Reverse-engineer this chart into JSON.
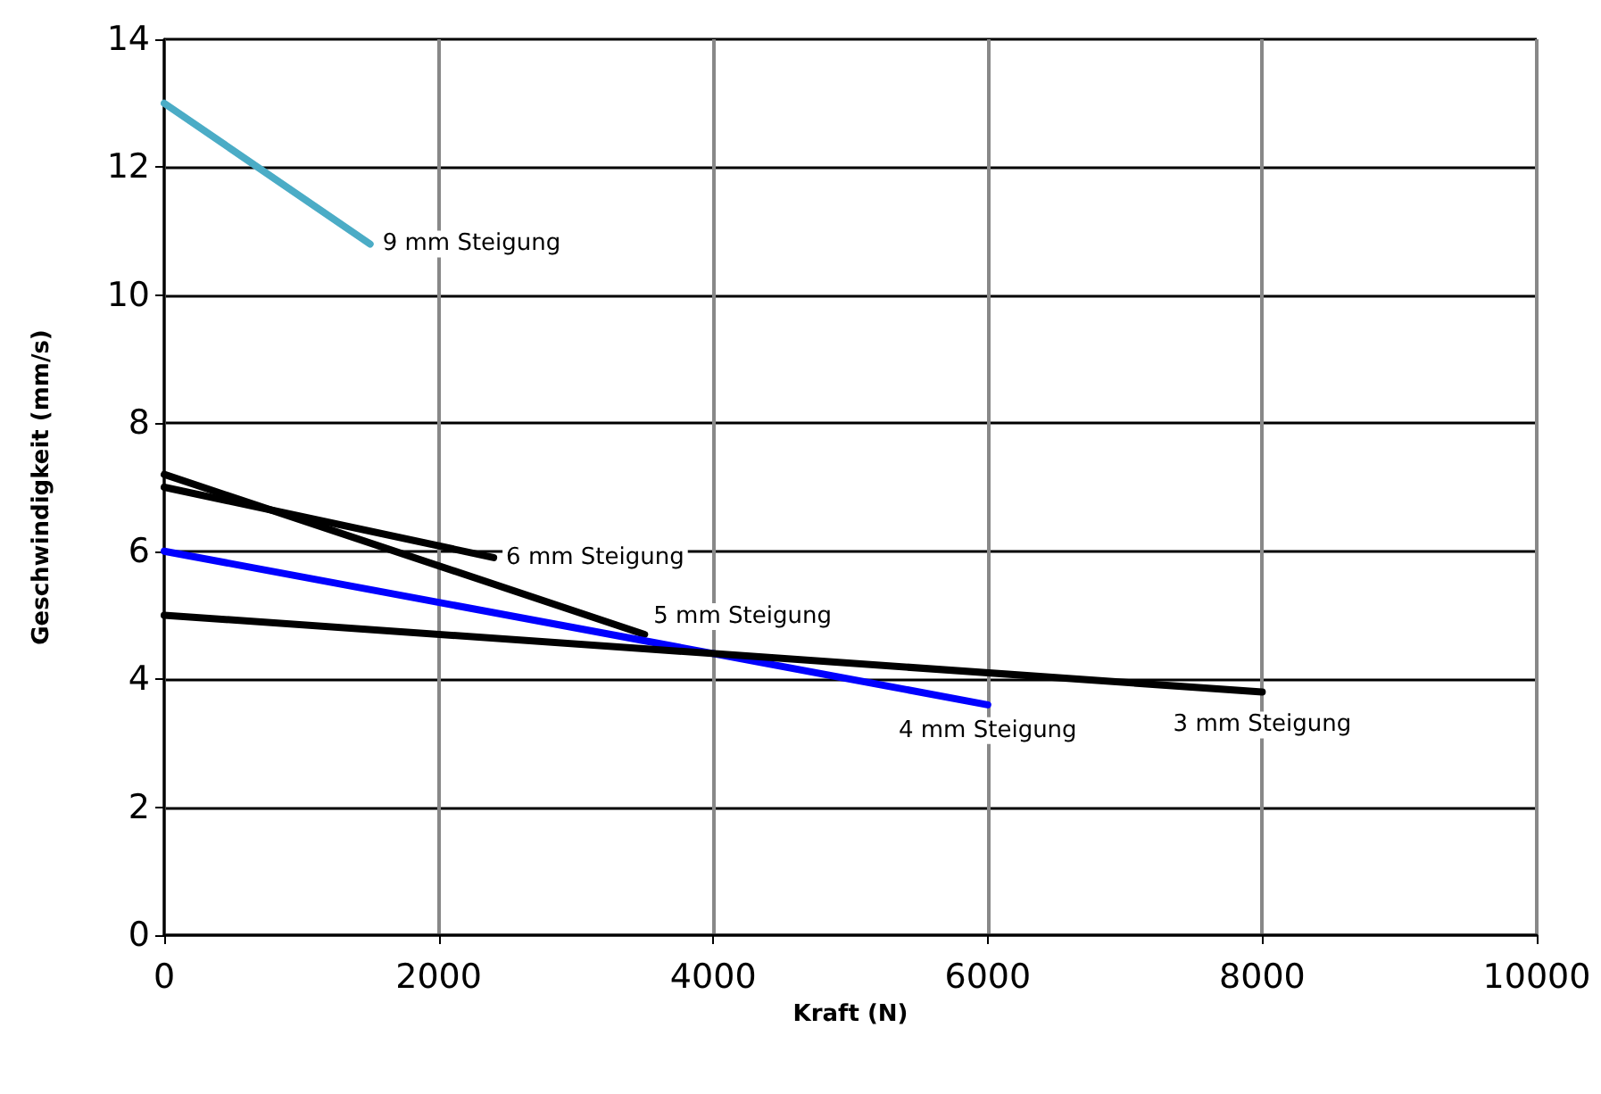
{
  "chart_data": {
    "type": "line",
    "xlabel": "Kraft (N)",
    "ylabel": "Geschwindigkeit (mm/s)",
    "xlim": [
      0,
      10000
    ],
    "xticks": [
      0,
      2000,
      4000,
      6000,
      8000,
      10000
    ],
    "ylim": [
      0,
      14
    ],
    "yticks": [
      0,
      2,
      4,
      6,
      8,
      10,
      12,
      14
    ],
    "grid": true,
    "legend": false,
    "marker": "none",
    "line_style": "solid",
    "series": [
      {
        "name": "9 mm Steigung",
        "color": "#4bacc6",
        "x": [
          0,
          1500
        ],
        "values": [
          13,
          10.8
        ]
      },
      {
        "name": "6 mm Steigung",
        "color": "#000000",
        "x": [
          0,
          2400
        ],
        "values": [
          7.0,
          5.9
        ]
      },
      {
        "name": "5 mm Steigung",
        "color": "#000000",
        "x": [
          0,
          3500
        ],
        "values": [
          7.2,
          4.7
        ]
      },
      {
        "name": "4 mm Steigung",
        "color": "#0000ff",
        "x": [
          0,
          6000
        ],
        "values": [
          6,
          3.6
        ]
      },
      {
        "name": "3 mm Steigung",
        "color": "#000000",
        "x": [
          0,
          8000
        ],
        "values": [
          5,
          3.8
        ]
      }
    ]
  }
}
